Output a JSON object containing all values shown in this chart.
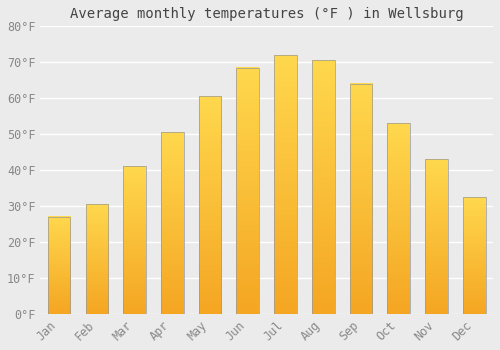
{
  "title": "Average monthly temperatures (°F ) in Wellsburg",
  "months": [
    "Jan",
    "Feb",
    "Mar",
    "Apr",
    "May",
    "Jun",
    "Jul",
    "Aug",
    "Sep",
    "Oct",
    "Nov",
    "Dec"
  ],
  "values": [
    27,
    30.5,
    41,
    50.5,
    60.5,
    68.5,
    72,
    70.5,
    64,
    53,
    43,
    32.5
  ],
  "bar_color_bottom": "#F5A623",
  "bar_color_top": "#FFD84D",
  "bar_edge_color": "#999999",
  "ylim": [
    0,
    80
  ],
  "yticks": [
    0,
    10,
    20,
    30,
    40,
    50,
    60,
    70,
    80
  ],
  "ytick_labels": [
    "0°F",
    "10°F",
    "20°F",
    "30°F",
    "40°F",
    "50°F",
    "60°F",
    "70°F",
    "80°F"
  ],
  "background_color": "#EBEBEB",
  "grid_color": "#FFFFFF",
  "title_fontsize": 10,
  "tick_fontsize": 8.5,
  "font_family": "monospace",
  "bar_width": 0.6,
  "gradient_steps": 100
}
